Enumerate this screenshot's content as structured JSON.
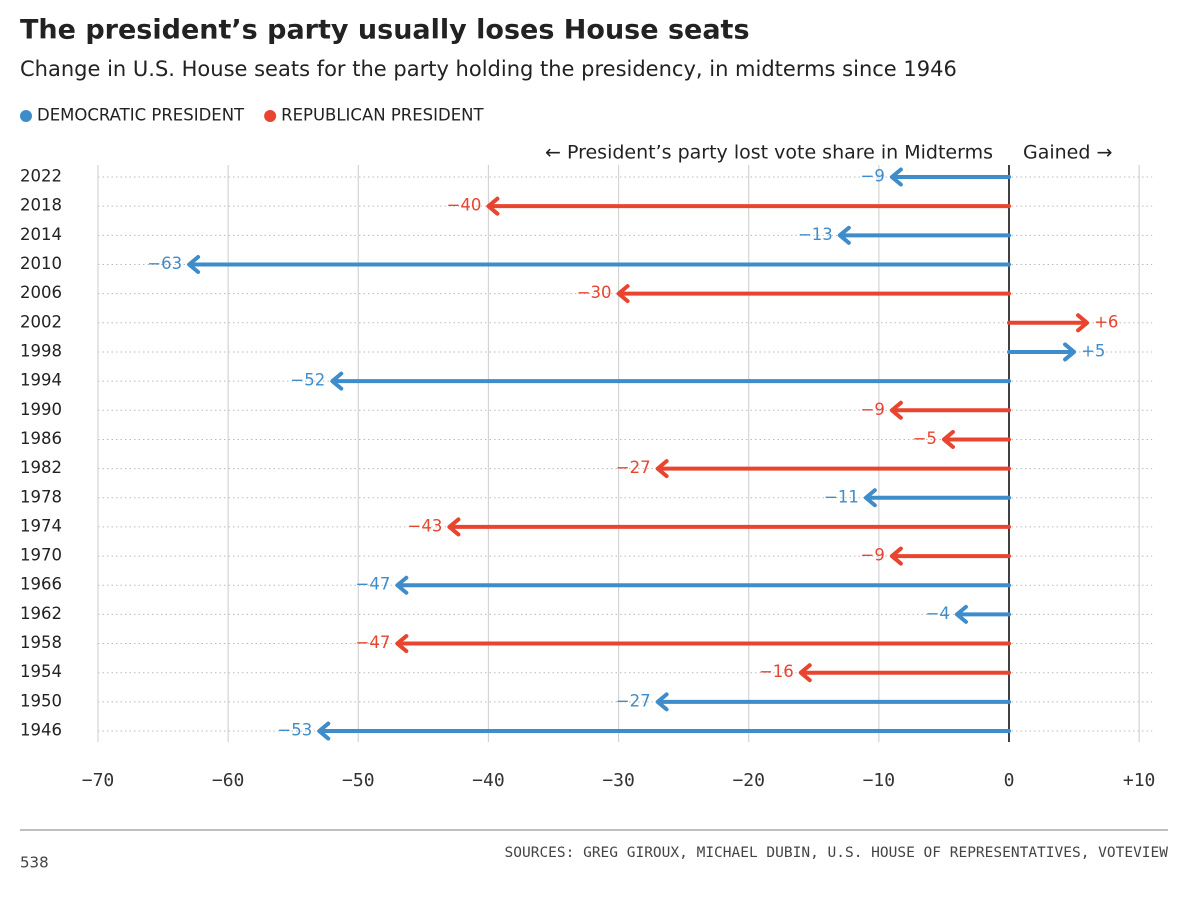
{
  "chart_data": {
    "type": "arrow",
    "title": "The president’s party usually loses House seats",
    "subtitle": "Change in U.S. House seats for the party holding the presidency, in midterms since 1946",
    "annotations": [
      "← President’s party lost vote share in Midterms",
      "Gained →"
    ],
    "categories": [
      "2022",
      "2018",
      "2014",
      "2010",
      "2006",
      "2002",
      "1998",
      "1994",
      "1990",
      "1986",
      "1982",
      "1978",
      "1974",
      "1970",
      "1966",
      "1962",
      "1958",
      "1954",
      "1950",
      "1946"
    ],
    "series": [
      {
        "name": "DEMOCRATIC PRESIDENT",
        "color": "#3f8ccb",
        "values": [
          -9,
          null,
          -13,
          -63,
          null,
          null,
          5,
          -52,
          null,
          null,
          null,
          -11,
          null,
          null,
          -47,
          -4,
          null,
          null,
          -27,
          -53
        ],
        "value_labels": [
          "−9",
          null,
          "−13",
          "−63",
          null,
          null,
          "+5",
          "−52",
          null,
          null,
          null,
          "−11",
          null,
          null,
          "−47",
          "−4",
          null,
          null,
          "−27",
          "−53"
        ]
      },
      {
        "name": "REPUBLICAN PRESIDENT",
        "color": "#e8442f",
        "values": [
          null,
          -40,
          null,
          null,
          -30,
          6,
          null,
          null,
          -9,
          -5,
          -27,
          null,
          -43,
          -9,
          null,
          null,
          -47,
          -16,
          null,
          null
        ],
        "value_labels": [
          null,
          "−40",
          null,
          null,
          "−30",
          "+6",
          null,
          null,
          "−9",
          "−5",
          "−27",
          null,
          "−43",
          "−9",
          null,
          null,
          "−47",
          "−16",
          null,
          null
        ]
      }
    ],
    "xlim": [
      -70,
      11
    ],
    "xticks": [
      {
        "value": -70,
        "label": "−70"
      },
      {
        "value": -60,
        "label": "−60"
      },
      {
        "value": -50,
        "label": "−50"
      },
      {
        "value": -40,
        "label": "−40"
      },
      {
        "value": -30,
        "label": "−30"
      },
      {
        "value": -20,
        "label": "−20"
      },
      {
        "value": -10,
        "label": "−10"
      },
      0,
      {
        "value": 10,
        "label": "+10"
      }
    ],
    "grid": true,
    "source": "SOURCES: GREG GIROUX, MICHAEL DUBIN, U.S. HOUSE OF REPRESENTATIVES, VOTEVIEW",
    "publisher": "538"
  }
}
